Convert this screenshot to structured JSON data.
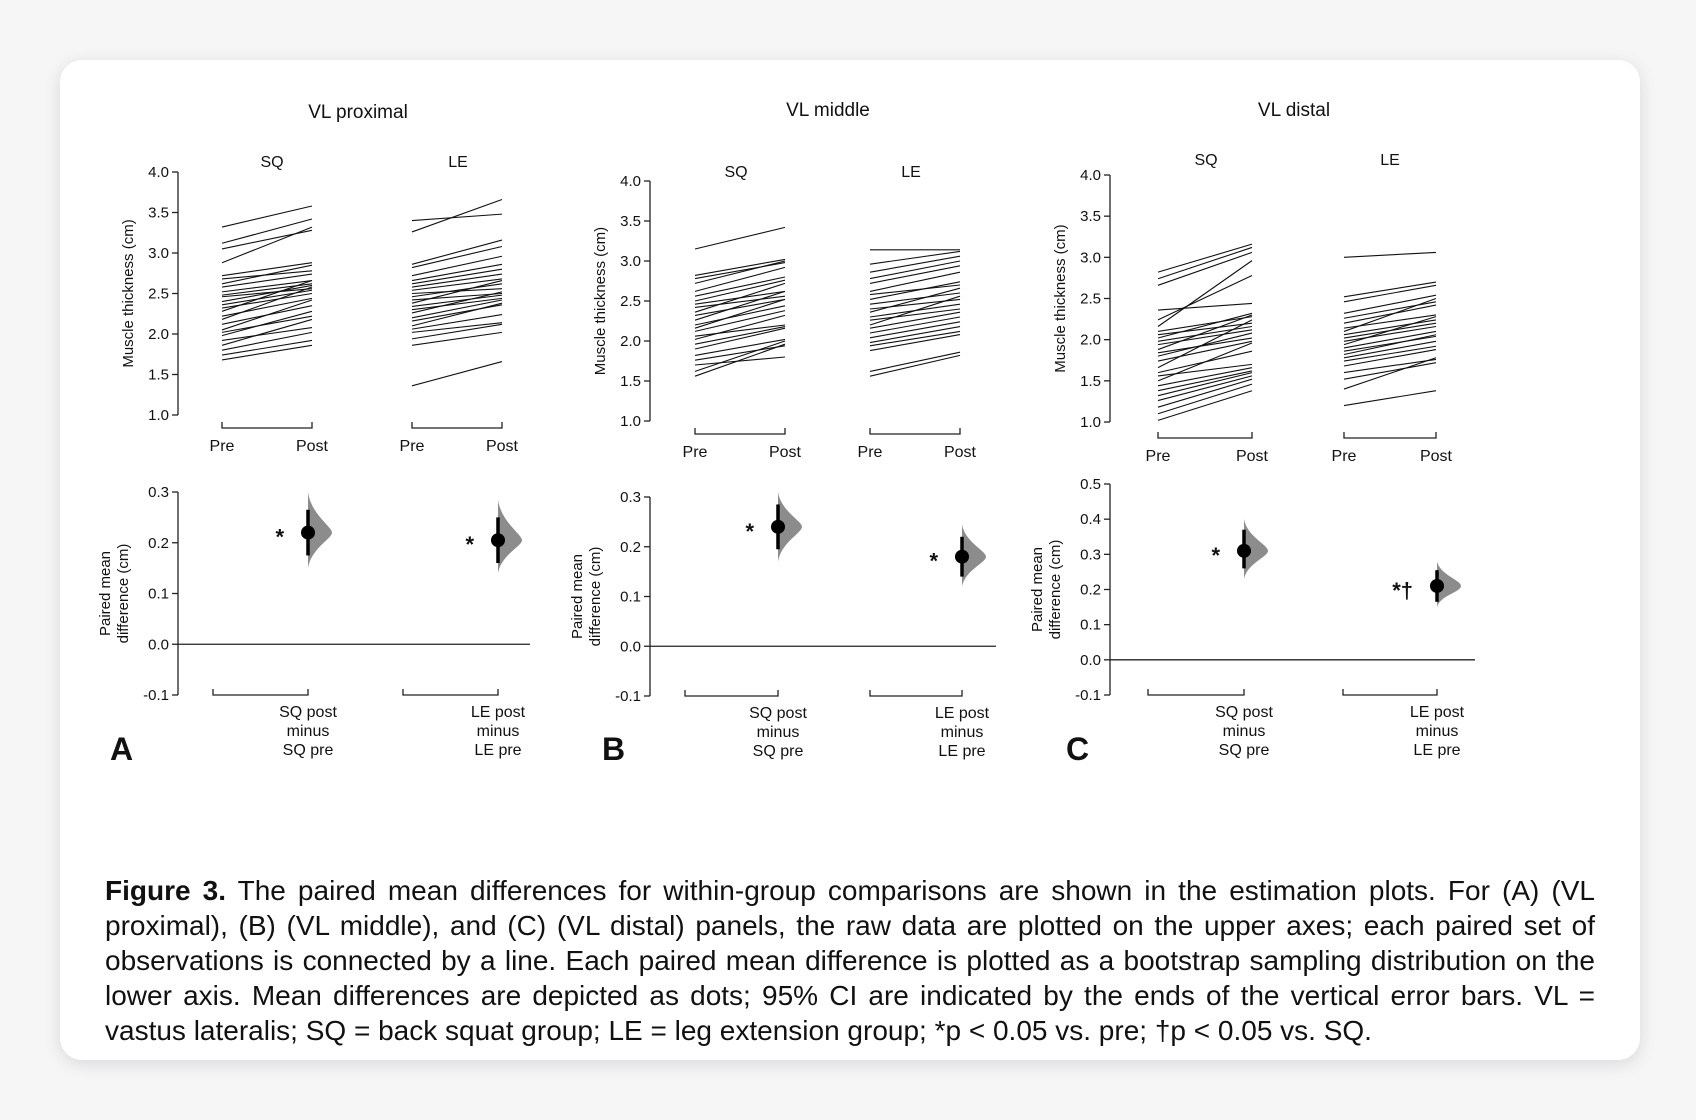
{
  "figure": {
    "caption": {
      "label": "Figure 3.",
      "text": "The paired mean differences for within-group comparisons are shown in the estimation plots. For (A) (VL proximal), (B) (VL middle), and (C) (VL distal) panels, the raw data are plotted on the upper axes; each paired set of observations is connected by a line. Each paired mean difference is plotted as a bootstrap sampling distribution on the lower axis. Mean differences are depicted as dots; 95% CI are indicated by the ends of the vertical error bars. VL = vastus lateralis; SQ = back squat group; LE = leg extension group; *p < 0.05 vs. pre; †p < 0.05 vs. SQ."
    }
  },
  "chart_data": [
    {
      "panel_letter": "A",
      "title": "VL proximal",
      "type": "line",
      "upper": {
        "ylabel": "Muscle thickness (cm)",
        "ylim": [
          1.0,
          4.0
        ],
        "yticks": [
          "1.0",
          "1.5",
          "2.0",
          "2.5",
          "3.0",
          "3.5",
          "4.0"
        ],
        "x_ticks": [
          "Pre",
          "Post",
          "Pre",
          "Post"
        ],
        "groups": [
          {
            "name": "SQ",
            "pairs": [
              [
                3.32,
                3.58
              ],
              [
                3.12,
                3.42
              ],
              [
                3.05,
                3.28
              ],
              [
                2.88,
                3.32
              ],
              [
                2.72,
                2.88
              ],
              [
                2.68,
                2.78
              ],
              [
                2.62,
                2.85
              ],
              [
                2.58,
                2.74
              ],
              [
                2.52,
                2.66
              ],
              [
                2.48,
                2.62
              ],
              [
                2.46,
                2.56
              ],
              [
                2.4,
                2.6
              ],
              [
                2.36,
                2.54
              ],
              [
                2.32,
                2.5
              ],
              [
                2.28,
                2.66
              ],
              [
                2.22,
                2.44
              ],
              [
                2.18,
                2.58
              ],
              [
                2.12,
                2.35
              ],
              [
                2.05,
                2.42
              ],
              [
                2.02,
                2.22
              ],
              [
                1.98,
                2.28
              ],
              [
                1.92,
                2.08
              ],
              [
                1.86,
                2.18
              ],
              [
                1.8,
                2.02
              ],
              [
                1.74,
                1.92
              ],
              [
                1.68,
                1.86
              ]
            ]
          },
          {
            "name": "LE",
            "pairs": [
              [
                3.4,
                3.48
              ],
              [
                3.26,
                3.66
              ],
              [
                2.86,
                3.16
              ],
              [
                2.82,
                3.08
              ],
              [
                2.72,
                2.96
              ],
              [
                2.66,
                2.86
              ],
              [
                2.62,
                2.8
              ],
              [
                2.58,
                2.74
              ],
              [
                2.54,
                2.68
              ],
              [
                2.5,
                2.56
              ],
              [
                2.46,
                2.62
              ],
              [
                2.42,
                2.5
              ],
              [
                2.38,
                2.66
              ],
              [
                2.34,
                2.48
              ],
              [
                2.3,
                2.44
              ],
              [
                2.26,
                2.52
              ],
              [
                2.2,
                2.42
              ],
              [
                2.16,
                2.36
              ],
              [
                2.1,
                2.38
              ],
              [
                2.06,
                2.24
              ],
              [
                2.02,
                2.14
              ],
              [
                1.94,
                2.12
              ],
              [
                1.86,
                2.02
              ],
              [
                1.36,
                1.66
              ]
            ]
          }
        ]
      },
      "lower": {
        "ylabel": "Paired mean difference (cm)",
        "ylim": [
          -0.1,
          0.3
        ],
        "yticks": [
          "-0.1",
          "0.0",
          "0.1",
          "0.2",
          "0.3"
        ],
        "comparisons": [
          {
            "label": [
              "SQ post",
              "minus",
              "SQ pre"
            ],
            "mean": 0.22,
            "ci": [
              0.175,
              0.265
            ],
            "dist": [
              0.15,
              0.3
            ],
            "annotation": "*"
          },
          {
            "label": [
              "LE post",
              "minus",
              "LE pre"
            ],
            "mean": 0.205,
            "ci": [
              0.16,
              0.25
            ],
            "dist": [
              0.14,
              0.285
            ],
            "annotation": "*"
          }
        ]
      }
    },
    {
      "panel_letter": "B",
      "title": "VL middle",
      "type": "line",
      "upper": {
        "ylabel": "Muscle thickness (cm)",
        "ylim": [
          1.0,
          4.0
        ],
        "yticks": [
          "1.0",
          "1.5",
          "2.0",
          "2.5",
          "3.0",
          "3.5",
          "4.0"
        ],
        "x_ticks": [
          "Pre",
          "Post",
          "Pre",
          "Post"
        ],
        "groups": [
          {
            "name": "SQ",
            "pairs": [
              [
                3.15,
                3.42
              ],
              [
                2.82,
                3.02
              ],
              [
                2.78,
                2.98
              ],
              [
                2.72,
                3.0
              ],
              [
                2.62,
                2.92
              ],
              [
                2.56,
                2.8
              ],
              [
                2.5,
                2.76
              ],
              [
                2.46,
                2.62
              ],
              [
                2.42,
                2.56
              ],
              [
                2.36,
                2.72
              ],
              [
                2.32,
                2.52
              ],
              [
                2.26,
                2.62
              ],
              [
                2.2,
                2.44
              ],
              [
                2.16,
                2.52
              ],
              [
                2.12,
                2.38
              ],
              [
                2.06,
                2.2
              ],
              [
                2.02,
                2.32
              ],
              [
                1.96,
                2.18
              ],
              [
                1.9,
                2.16
              ],
              [
                1.82,
                2.02
              ],
              [
                1.76,
                1.94
              ],
              [
                1.7,
                1.8
              ],
              [
                1.62,
                2.0
              ],
              [
                1.56,
                1.96
              ]
            ]
          },
          {
            "name": "LE",
            "pairs": [
              [
                3.14,
                3.14
              ],
              [
                2.96,
                3.12
              ],
              [
                2.86,
                3.06
              ],
              [
                2.78,
                3.0
              ],
              [
                2.72,
                2.94
              ],
              [
                2.62,
                2.86
              ],
              [
                2.58,
                2.7
              ],
              [
                2.52,
                2.74
              ],
              [
                2.46,
                2.6
              ],
              [
                2.4,
                2.52
              ],
              [
                2.36,
                2.66
              ],
              [
                2.3,
                2.46
              ],
              [
                2.26,
                2.4
              ],
              [
                2.2,
                2.56
              ],
              [
                2.16,
                2.36
              ],
              [
                2.1,
                2.3
              ],
              [
                2.04,
                2.24
              ],
              [
                1.98,
                2.18
              ],
              [
                1.94,
                2.12
              ],
              [
                1.88,
                2.08
              ],
              [
                1.62,
                1.86
              ],
              [
                1.56,
                1.82
              ]
            ]
          }
        ]
      },
      "lower": {
        "ylabel": "Paired mean difference (cm)",
        "ylim": [
          -0.1,
          0.3
        ],
        "yticks": [
          "-0.1",
          "0.0",
          "0.1",
          "0.2",
          "0.3"
        ],
        "comparisons": [
          {
            "label": [
              "SQ post",
              "minus",
              "SQ pre"
            ],
            "mean": 0.24,
            "ci": [
              0.195,
              0.285
            ],
            "dist": [
              0.17,
              0.31
            ],
            "annotation": "*"
          },
          {
            "label": [
              "LE post",
              "minus",
              "LE pre"
            ],
            "mean": 0.18,
            "ci": [
              0.14,
              0.22
            ],
            "dist": [
              0.12,
              0.245
            ],
            "annotation": "*"
          }
        ]
      }
    },
    {
      "panel_letter": "C",
      "title": "VL distal",
      "type": "line",
      "upper": {
        "ylabel": "Muscle thickness (cm)",
        "ylim": [
          1.0,
          4.0
        ],
        "yticks": [
          "1.0",
          "1.5",
          "2.0",
          "2.5",
          "3.0",
          "3.5",
          "4.0"
        ],
        "x_ticks": [
          "Pre",
          "Post",
          "Pre",
          "Post"
        ],
        "groups": [
          {
            "name": "SQ",
            "pairs": [
              [
                2.82,
                3.16
              ],
              [
                2.74,
                3.12
              ],
              [
                2.66,
                3.06
              ],
              [
                2.36,
                2.44
              ],
              [
                2.24,
                2.78
              ],
              [
                2.16,
                2.96
              ],
              [
                2.1,
                2.28
              ],
              [
                2.06,
                2.2
              ],
              [
                2.02,
                2.32
              ],
              [
                1.98,
                2.16
              ],
              [
                1.94,
                2.12
              ],
              [
                1.88,
                2.3
              ],
              [
                1.84,
                2.02
              ],
              [
                1.8,
                2.08
              ],
              [
                1.74,
                1.98
              ],
              [
                1.66,
                2.24
              ],
              [
                1.6,
                1.86
              ],
              [
                1.56,
                1.7
              ],
              [
                1.5,
                1.96
              ],
              [
                1.44,
                1.66
              ],
              [
                1.38,
                1.62
              ],
              [
                1.32,
                1.6
              ],
              [
                1.26,
                1.56
              ],
              [
                1.18,
                1.52
              ],
              [
                1.1,
                1.46
              ],
              [
                1.02,
                1.38
              ]
            ]
          },
          {
            "name": "LE",
            "pairs": [
              [
                3.0,
                3.06
              ],
              [
                2.52,
                2.7
              ],
              [
                2.46,
                2.66
              ],
              [
                2.32,
                2.54
              ],
              [
                2.26,
                2.46
              ],
              [
                2.2,
                2.42
              ],
              [
                2.14,
                2.3
              ],
              [
                2.1,
                2.5
              ],
              [
                2.06,
                2.24
              ],
              [
                2.02,
                2.2
              ],
              [
                1.98,
                2.16
              ],
              [
                1.94,
                2.28
              ],
              [
                1.9,
                2.1
              ],
              [
                1.86,
                2.04
              ],
              [
                1.82,
                2.06
              ],
              [
                1.78,
                1.98
              ],
              [
                1.74,
                1.92
              ],
              [
                1.68,
                1.88
              ],
              [
                1.6,
                1.76
              ],
              [
                1.52,
                1.72
              ],
              [
                1.4,
                1.78
              ],
              [
                1.2,
                1.38
              ]
            ]
          }
        ]
      },
      "lower": {
        "ylabel": "Paired mean difference (cm)",
        "ylim": [
          -0.1,
          0.5
        ],
        "yticks": [
          "-0.1",
          "0.0",
          "0.1",
          "0.2",
          "0.3",
          "0.4",
          "0.5"
        ],
        "comparisons": [
          {
            "label": [
              "SQ post",
              "minus",
              "SQ pre"
            ],
            "mean": 0.31,
            "ci": [
              0.26,
              0.37
            ],
            "dist": [
              0.23,
              0.4
            ],
            "annotation": "*"
          },
          {
            "label": [
              "LE post",
              "minus",
              "LE pre"
            ],
            "mean": 0.21,
            "ci": [
              0.165,
              0.255
            ],
            "dist": [
              0.15,
              0.28
            ],
            "annotation": "*†"
          }
        ]
      }
    }
  ]
}
